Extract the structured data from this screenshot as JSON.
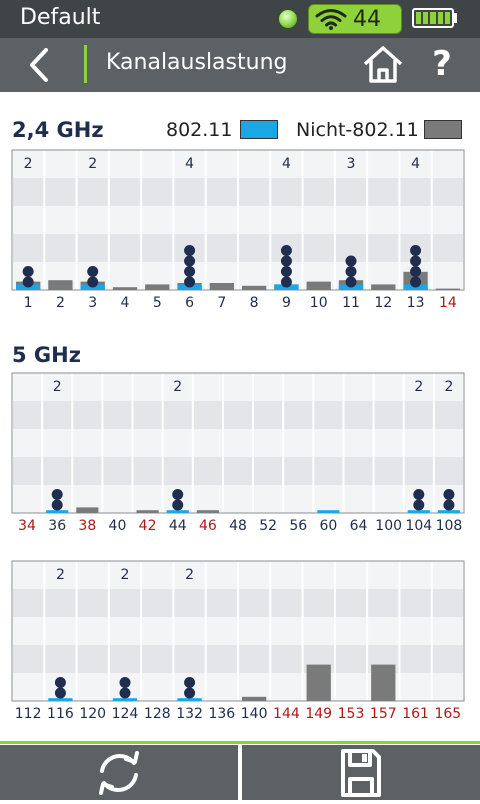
{
  "status": {
    "profile": "Default",
    "wifi_count": "44"
  },
  "header": {
    "title": "Kanalauslastung"
  },
  "colors": {
    "wifi_bar": "#1aa7e5",
    "non_wifi_bar": "#7a7a7a",
    "ap_dot": "#1f2d4e",
    "channel_normal": "#1f2d4e",
    "channel_restricted": "#b01818"
  },
  "legend": {
    "wifi_label": "802.11",
    "non_wifi_label": "Nicht-802.11"
  },
  "bands": {
    "band_24_title": "2,4 GHz",
    "band_5_title": "5 GHz"
  },
  "chart_data": [
    {
      "type": "bar",
      "band": "2,4 GHz",
      "categories": [
        "1",
        "2",
        "3",
        "4",
        "5",
        "6",
        "7",
        "8",
        "9",
        "10",
        "11",
        "12",
        "13",
        "14"
      ],
      "restricted": [
        false,
        false,
        false,
        false,
        false,
        false,
        false,
        false,
        false,
        false,
        false,
        false,
        false,
        true
      ],
      "ap_counts": [
        2,
        0,
        2,
        0,
        0,
        4,
        0,
        0,
        4,
        0,
        3,
        0,
        4,
        0
      ],
      "series": [
        {
          "name": "802.11",
          "values": [
            4,
            0,
            4,
            0,
            0,
            4,
            0,
            0,
            4,
            0,
            4,
            0,
            4,
            0
          ]
        },
        {
          "name": "Nicht-802.11",
          "values": [
            6,
            7,
            6,
            2,
            4,
            5,
            5,
            3,
            4,
            6,
            7,
            4,
            13,
            1
          ]
        }
      ],
      "ylim": [
        0,
        100
      ]
    },
    {
      "type": "bar",
      "band": "5 GHz",
      "categories": [
        "34",
        "36",
        "38",
        "40",
        "42",
        "44",
        "46",
        "48",
        "52",
        "56",
        "60",
        "64",
        "100",
        "104",
        "108"
      ],
      "restricted": [
        true,
        false,
        true,
        false,
        true,
        false,
        true,
        false,
        false,
        false,
        false,
        false,
        false,
        false,
        false
      ],
      "ap_counts": [
        0,
        2,
        0,
        0,
        0,
        2,
        0,
        0,
        0,
        0,
        0,
        0,
        0,
        2,
        2
      ],
      "series": [
        {
          "name": "802.11",
          "values": [
            0,
            2,
            0,
            0,
            0,
            2,
            0,
            0,
            0,
            0,
            2,
            0,
            0,
            2,
            2
          ]
        },
        {
          "name": "Nicht-802.11",
          "values": [
            0,
            1,
            4,
            0,
            2,
            0,
            2,
            0,
            0,
            0,
            0,
            0,
            0,
            0,
            0
          ]
        }
      ],
      "ylim": [
        0,
        100
      ]
    },
    {
      "type": "bar",
      "band": "5 GHz",
      "categories": [
        "112",
        "116",
        "120",
        "124",
        "128",
        "132",
        "136",
        "140",
        "144",
        "149",
        "153",
        "157",
        "161",
        "165"
      ],
      "restricted": [
        false,
        false,
        false,
        false,
        false,
        false,
        false,
        false,
        true,
        true,
        true,
        true,
        true,
        true
      ],
      "ap_counts": [
        0,
        2,
        0,
        2,
        0,
        2,
        0,
        0,
        0,
        0,
        0,
        0,
        0,
        0
      ],
      "series": [
        {
          "name": "802.11",
          "values": [
            0,
            2,
            0,
            2,
            0,
            2,
            0,
            0,
            0,
            0,
            0,
            0,
            0,
            0
          ]
        },
        {
          "name": "Nicht-802.11",
          "values": [
            0,
            0,
            0,
            0,
            0,
            0,
            0,
            3,
            0,
            26,
            0,
            26,
            0,
            0
          ]
        }
      ],
      "ylim": [
        0,
        100
      ]
    }
  ],
  "icons": {
    "back": "chevron-left-icon",
    "home": "home-icon",
    "help": "?",
    "refresh": "refresh-icon",
    "save": "save-icon"
  }
}
